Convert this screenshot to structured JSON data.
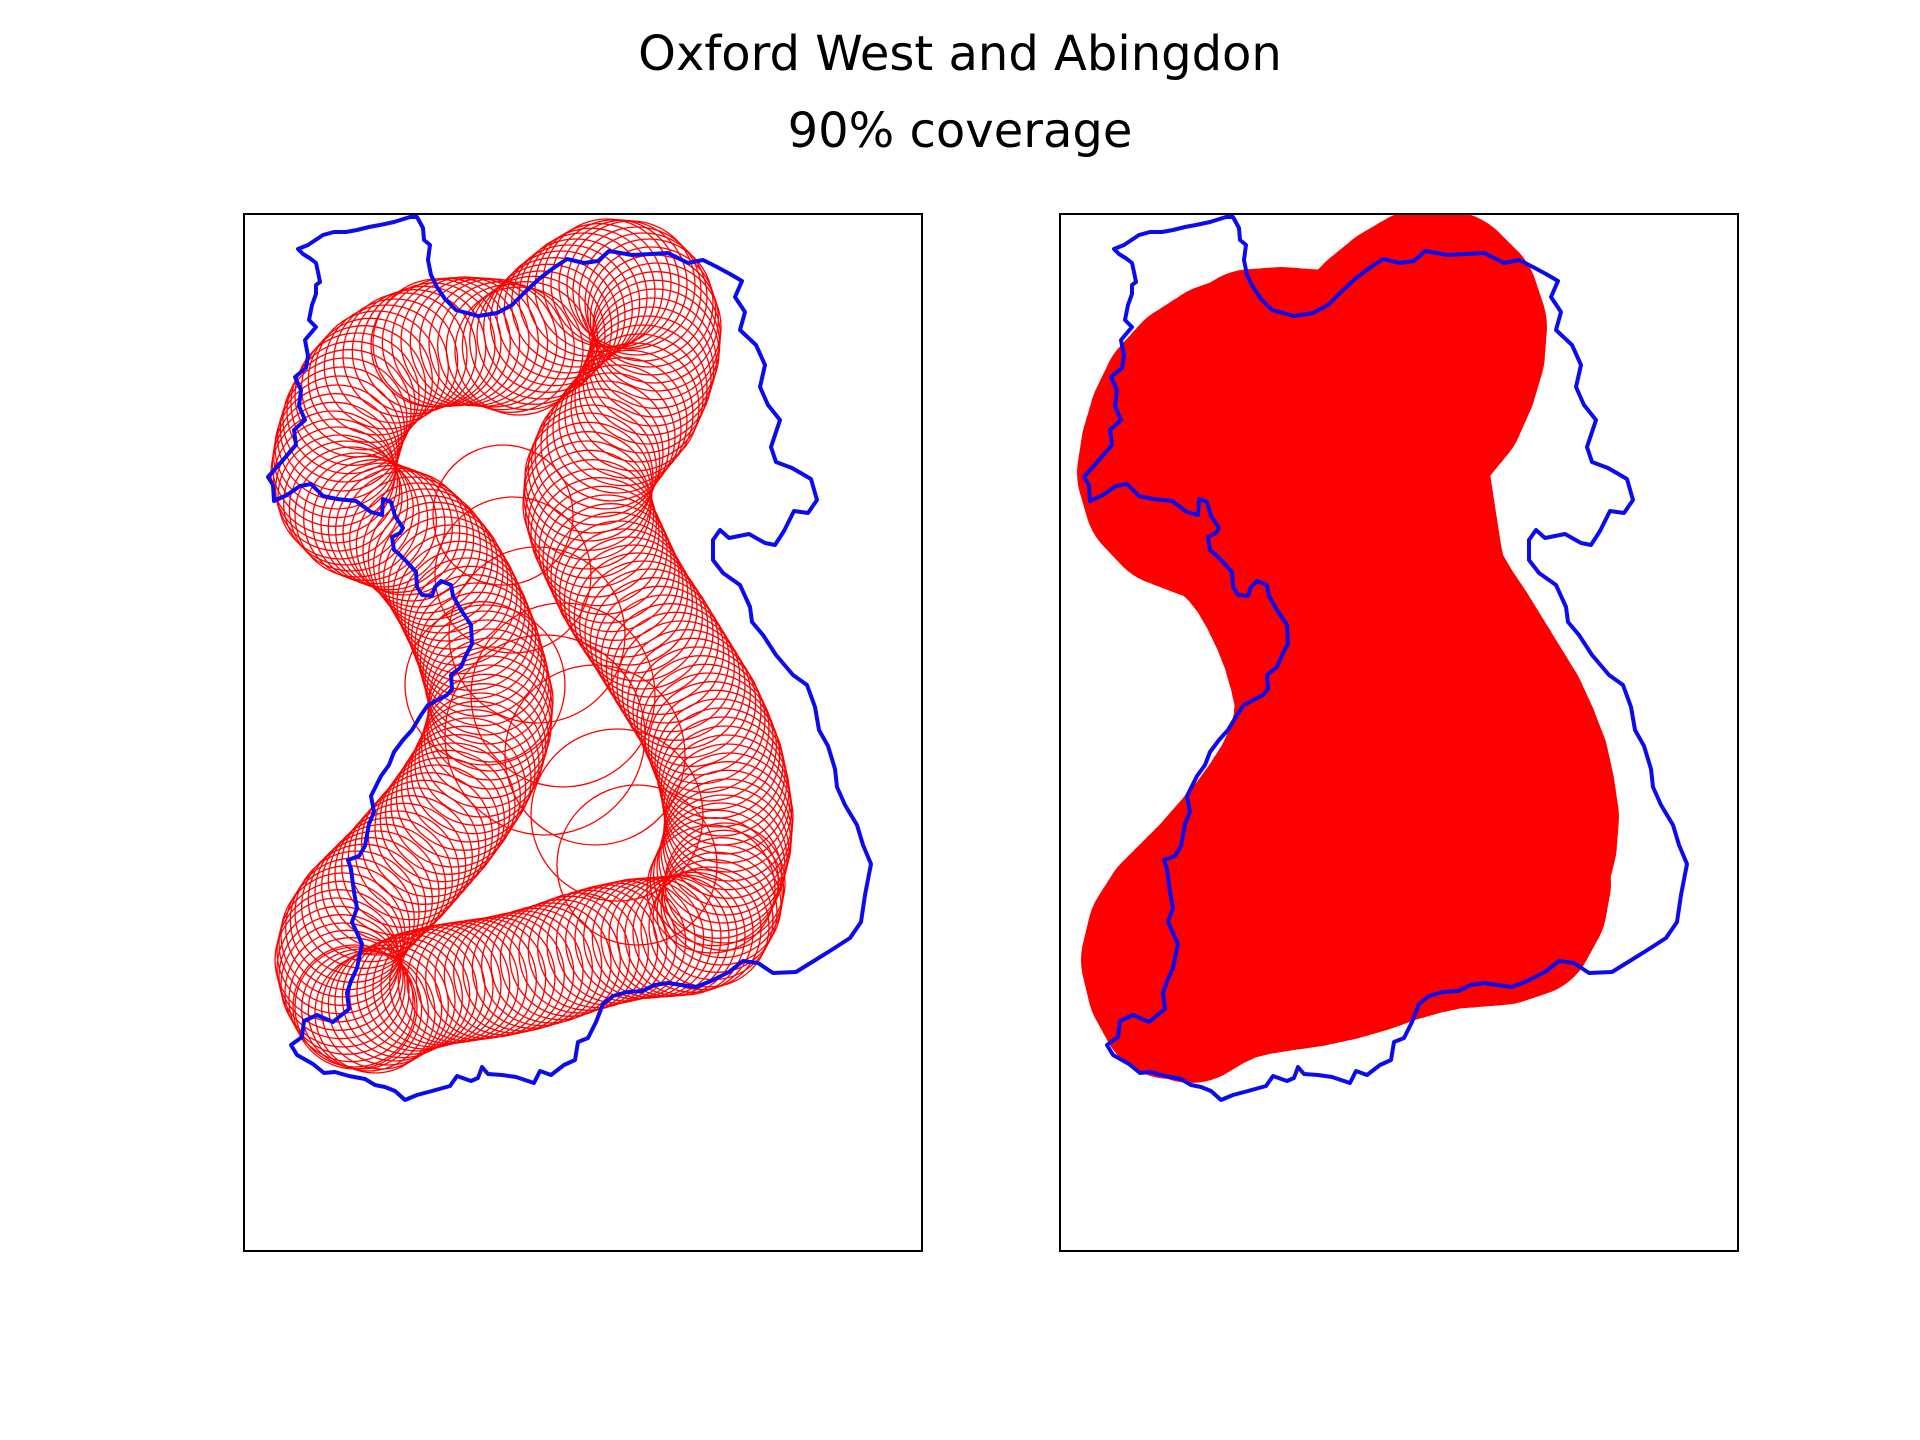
{
  "title": "Oxford West and Abingdon",
  "subtitle": "90% coverage",
  "colors": {
    "boundary": "#0b0bf0",
    "circles": "#ff0000",
    "frame": "#000000"
  },
  "chart_data": [
    {
      "type": "map",
      "panel": "left",
      "title": "",
      "subtitle": "",
      "xlabel": "",
      "ylabel": "",
      "grid": false,
      "ticks": false,
      "circle_style": "outline",
      "layers": [
        "boundary",
        "circles"
      ]
    },
    {
      "type": "map",
      "panel": "right",
      "title": "",
      "subtitle": "",
      "xlabel": "",
      "ylabel": "",
      "grid": false,
      "ticks": false,
      "circle_style": "filled",
      "layers": [
        "boundary",
        "circles"
      ]
    }
  ]
}
